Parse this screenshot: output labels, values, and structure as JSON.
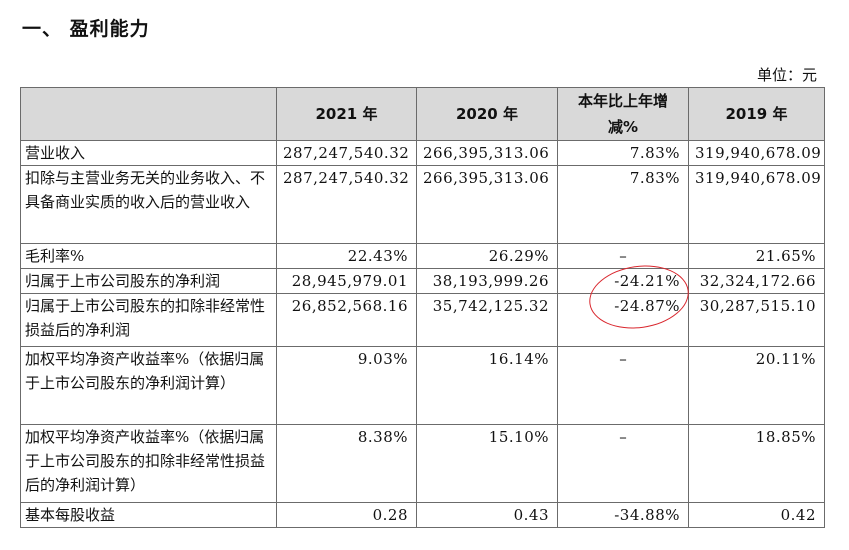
{
  "title": "一、 盈利能力",
  "unit": "单位：元",
  "headers": [
    "",
    "2021 年",
    "2020 年",
    "本年比上年增减%",
    "2019 年"
  ],
  "rows": [
    {
      "label": "营业收入",
      "v2021": "287,247,540.32",
      "v2020": "266,395,313.06",
      "change": "7.83%",
      "v2019": "319,940,678.09"
    },
    {
      "label": "扣除与主营业务无关的业务收入、不具备商业实质的收入后的营业收入",
      "v2021": "287,247,540.32",
      "v2020": "266,395,313.06",
      "change": "7.83%",
      "v2019": "319,940,678.09"
    },
    {
      "label": "毛利率%",
      "v2021": "22.43%",
      "v2020": "26.29%",
      "change": "–",
      "v2019": "21.65%"
    },
    {
      "label": "归属于上市公司股东的净利润",
      "v2021": "28,945,979.01",
      "v2020": "38,193,999.26",
      "change": "-24.21%",
      "v2019": "32,324,172.66"
    },
    {
      "label": "归属于上市公司股东的扣除非经常性损益后的净利润",
      "v2021": "26,852,568.16",
      "v2020": "35,742,125.32",
      "change": "-24.87%",
      "v2019": "30,287,515.10"
    },
    {
      "label": "加权平均净资产收益率%（依据归属于上市公司股东的净利润计算）",
      "v2021": "9.03%",
      "v2020": "16.14%",
      "change": "–",
      "v2019": "20.11%"
    },
    {
      "label": "加权平均净资产收益率%（依据归属于上市公司股东的扣除非经常性损益后的净利润计算）",
      "v2021": "8.38%",
      "v2020": "15.10%",
      "change": "–",
      "v2019": "18.85%"
    },
    {
      "label": "基本每股收益",
      "v2021": "0.28",
      "v2020": "0.43",
      "change": "-34.88%",
      "v2019": "0.42"
    }
  ]
}
